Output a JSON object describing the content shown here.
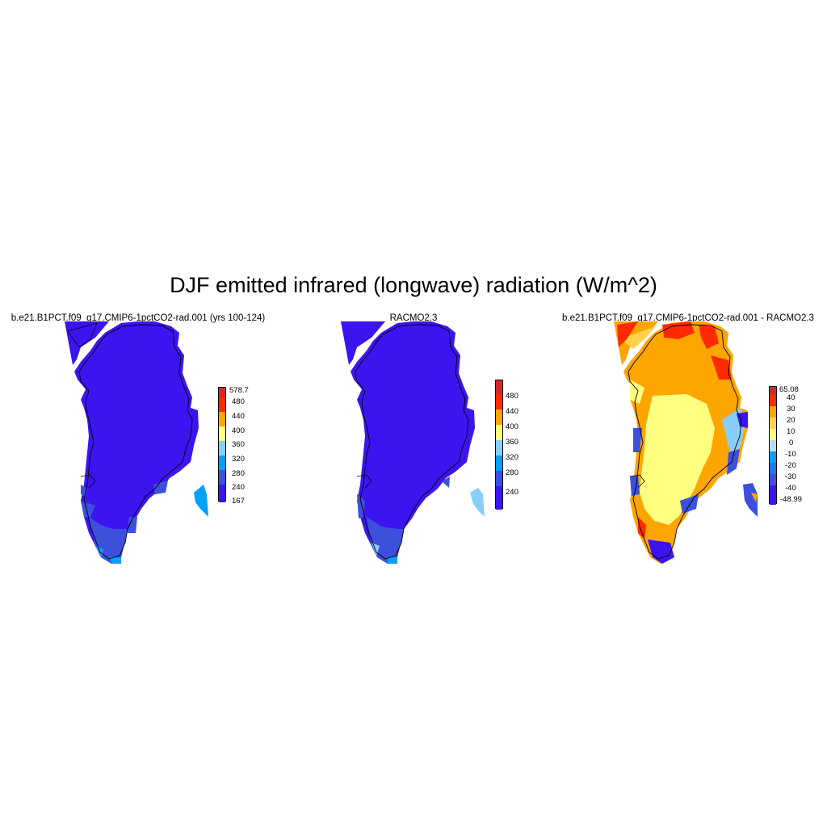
{
  "title": "DJF emitted infrared (longwave) radiation (W/m^2)",
  "panels": [
    {
      "title": "b.e21.B1PCT.f09_g17.CMIP6-1pctCO2-rad.001 (yrs 100-124)",
      "colorbar": {
        "labels": [
          "578.7",
          "480",
          "440",
          "400",
          "360",
          "320",
          "280",
          "240",
          "167"
        ],
        "colors": [
          "#d62728",
          "#ff2a00",
          "#ffa500",
          "#ffff80",
          "#87cefa",
          "#00a0ff",
          "#3c50dc",
          "#3c14f0"
        ]
      }
    },
    {
      "title": "RACMO2.3",
      "colorbar": {
        "labels": [
          "480",
          "440",
          "400",
          "360",
          "320",
          "280",
          "240"
        ],
        "colors": [
          "#d62728",
          "#ff2a00",
          "#ffa500",
          "#ffff80",
          "#87cefa",
          "#00a0ff",
          "#3c50dc",
          "#3c14f0"
        ]
      }
    },
    {
      "title": "b.e21.B1PCT.f09_g17.CMIP6-1pctCO2-rad.001 - RACMO2.3",
      "colorbar": {
        "labels": [
          "65.08",
          "40",
          "30",
          "20",
          "10",
          "0",
          "-10",
          "-20",
          "-30",
          "-40",
          "-48.99"
        ],
        "colors": [
          "#d62728",
          "#ff2a00",
          "#ffa500",
          "#ffd24a",
          "#ffff80",
          "#b4dcf0",
          "#00a0ff",
          "#1e78f0",
          "#3c50dc",
          "#3c14f0"
        ]
      }
    }
  ]
}
